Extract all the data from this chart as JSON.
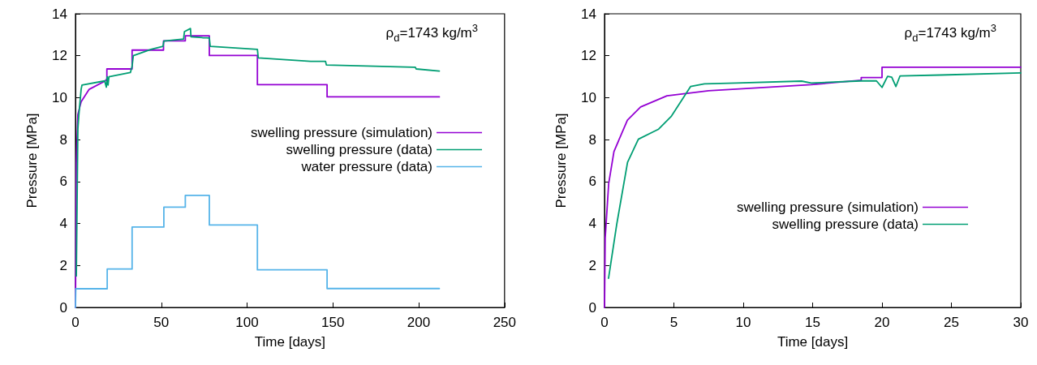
{
  "chart_data": [
    {
      "type": "line",
      "xlabel": "Time [days]",
      "ylabel": "Pressure [MPa]",
      "xlim": [
        0,
        250
      ],
      "xticks": [
        0,
        50,
        100,
        150,
        200,
        250
      ],
      "ylim": [
        0,
        14
      ],
      "yticks": [
        0,
        2,
        4,
        6,
        8,
        10,
        12,
        14
      ],
      "grid": false,
      "legend": "right",
      "marker": "none",
      "line_style": "solid",
      "annotations": [
        "ρ$_{d}$=1743 kg/m$^{3}$"
      ],
      "series": [
        {
          "name": "swelling pressure (simulation)",
          "color": "#9400d3",
          "x": [
            0,
            0.5,
            1.4,
            3.3,
            8,
            17.4,
            18.3,
            18.3,
            33,
            33,
            51.3,
            51.3,
            64,
            64,
            78,
            78,
            106,
            106,
            146.6,
            146.6,
            212
          ],
          "values": [
            0,
            6.9,
            9.2,
            9.8,
            10.4,
            10.8,
            10.9,
            11.37,
            11.37,
            12.27,
            12.27,
            12.71,
            12.71,
            12.95,
            12.95,
            12.01,
            12.01,
            10.62,
            10.62,
            10.04,
            10.04
          ]
        },
        {
          "name": "swelling pressure (data)",
          "color": "#009e73",
          "x": [
            0.5,
            1.4,
            2,
            3.3,
            3.8,
            17,
            18,
            18.5,
            19,
            19.5,
            32,
            33,
            33.7,
            44,
            51,
            51.5,
            63,
            63.5,
            67,
            67.3,
            74,
            78,
            78.5,
            106,
            106.5,
            137,
            145.7,
            146.2,
            198,
            198.5,
            212
          ],
          "values": [
            1.5,
            8.5,
            9.2,
            10.4,
            10.6,
            10.8,
            10.5,
            11.0,
            10.6,
            11.0,
            11.2,
            11.5,
            12.0,
            12.3,
            12.45,
            12.7,
            12.8,
            13.15,
            13.3,
            12.9,
            12.86,
            12.85,
            12.45,
            12.3,
            11.9,
            11.73,
            11.73,
            11.56,
            11.45,
            11.37,
            11.27
          ]
        },
        {
          "name": "water pressure (data)",
          "color": "#56b4e9",
          "x": [
            0,
            0.2,
            18.5,
            18.5,
            33,
            33,
            51.5,
            51.5,
            64,
            64,
            78,
            78,
            106,
            106,
            146.6,
            146.6,
            212
          ],
          "values": [
            0,
            0.89,
            0.89,
            1.83,
            1.83,
            3.83,
            3.83,
            4.78,
            4.78,
            5.34,
            5.34,
            3.93,
            3.93,
            1.79,
            1.79,
            0.9,
            0.9
          ]
        }
      ]
    },
    {
      "type": "line",
      "xlabel": "Time [days]",
      "ylabel": "Pressure [MPa]",
      "xlim": [
        0,
        30
      ],
      "xticks": [
        0,
        5,
        10,
        15,
        20,
        25,
        30
      ],
      "ylim": [
        0,
        14
      ],
      "yticks": [
        0,
        2,
        4,
        6,
        8,
        10,
        12,
        14
      ],
      "grid": false,
      "legend": "bottom right",
      "marker": "none",
      "line_style": "solid",
      "annotations": [
        "ρ$_{d}$=1743 kg/m$^{3}$"
      ],
      "series": [
        {
          "name": "swelling pressure (simulation)",
          "color": "#9400d3",
          "x": [
            0,
            0.05,
            0.3,
            0.68,
            1.65,
            2.6,
            4.5,
            7.5,
            14.9,
            18.5,
            18.5,
            20,
            20,
            30
          ],
          "values": [
            0,
            3.3,
            5.9,
            7.43,
            8.93,
            9.56,
            10.09,
            10.33,
            10.62,
            10.83,
            10.96,
            10.96,
            11.45,
            11.45
          ]
        },
        {
          "name": "swelling pressure (data)",
          "color": "#009e73",
          "x": [
            0.29,
            0.88,
            1.66,
            2.44,
            3.6,
            3.9,
            4.8,
            6.2,
            7.2,
            9.5,
            14.2,
            14.9,
            18.5,
            19.6,
            20,
            20.4,
            20.7,
            21,
            21.3,
            24.2,
            30
          ],
          "values": [
            1.39,
            3.96,
            6.92,
            8.02,
            8.4,
            8.5,
            9.1,
            10.53,
            10.66,
            10.7,
            10.79,
            10.7,
            10.8,
            10.8,
            10.49,
            11.02,
            10.98,
            10.53,
            11.04,
            11.08,
            11.18
          ]
        }
      ]
    }
  ]
}
